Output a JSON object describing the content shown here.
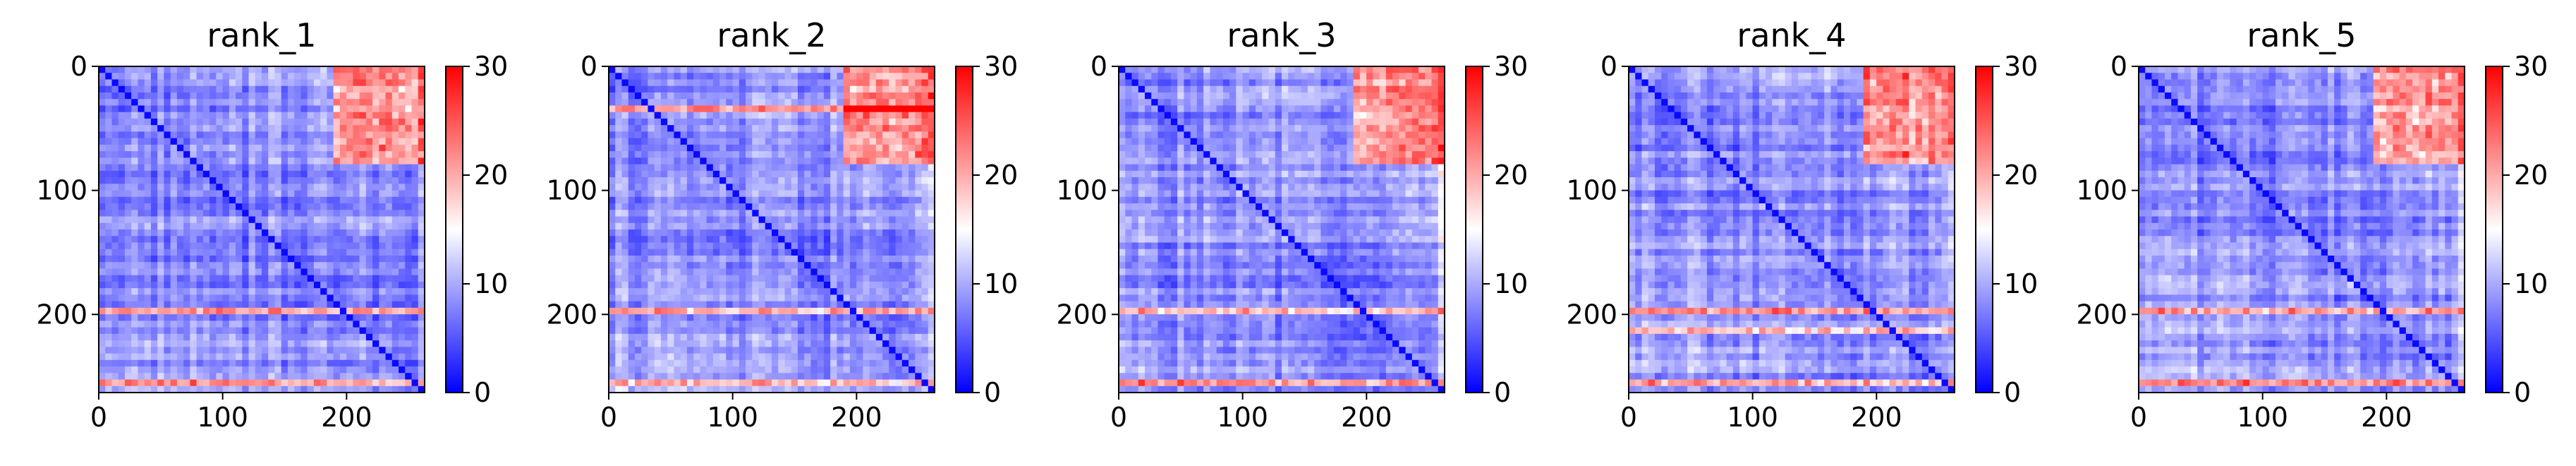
{
  "chart_data": [
    {
      "type": "heatmap",
      "title": "rank_1",
      "xlabel": "",
      "ylabel": "",
      "x_ticks": [
        "0",
        "100",
        "200"
      ],
      "y_ticks": [
        "0",
        "100",
        "200"
      ],
      "matrix_size": 263,
      "colorbar": {
        "min": 0,
        "max": 30,
        "ticks": [
          "0",
          "10",
          "20",
          "30"
        ],
        "colormap": "bwr"
      },
      "summary": {
        "diagonal_value": 0,
        "typical_offdiag": 8,
        "high_rows": [
          195,
          255
        ],
        "high_region": "top-right (rows 0-75, cols 185-263)"
      }
    },
    {
      "type": "heatmap",
      "title": "rank_2",
      "xlabel": "",
      "ylabel": "",
      "x_ticks": [
        "0",
        "100",
        "200"
      ],
      "y_ticks": [
        "0",
        "100",
        "200"
      ],
      "matrix_size": 263,
      "colorbar": {
        "min": 0,
        "max": 30,
        "ticks": [
          "0",
          "10",
          "20",
          "30"
        ],
        "colormap": "bwr"
      },
      "summary": {
        "diagonal_value": 0,
        "typical_offdiag": 8,
        "high_rows": [
          35,
          195,
          255
        ],
        "high_region": "top-right (rows 0-75, cols 185-263)"
      }
    },
    {
      "type": "heatmap",
      "title": "rank_3",
      "xlabel": "",
      "ylabel": "",
      "x_ticks": [
        "0",
        "100",
        "200"
      ],
      "y_ticks": [
        "0",
        "100",
        "200"
      ],
      "matrix_size": 263,
      "colorbar": {
        "min": 0,
        "max": 30,
        "ticks": [
          "0",
          "10",
          "20",
          "30"
        ],
        "colormap": "bwr"
      },
      "summary": {
        "diagonal_value": 0,
        "typical_offdiag": 8,
        "high_rows": [
          195,
          255
        ],
        "high_region": "top-right (rows 0-75, cols 185-263)"
      }
    },
    {
      "type": "heatmap",
      "title": "rank_4",
      "xlabel": "",
      "ylabel": "",
      "x_ticks": [
        "0",
        "100",
        "200"
      ],
      "y_ticks": [
        "0",
        "100",
        "200"
      ],
      "matrix_size": 263,
      "colorbar": {
        "min": 0,
        "max": 30,
        "ticks": [
          "0",
          "10",
          "20",
          "30"
        ],
        "colormap": "bwr"
      },
      "summary": {
        "diagonal_value": 0,
        "typical_offdiag": 8,
        "high_rows": [
          195,
          215,
          255
        ],
        "high_region": "top-right (rows 0-75, cols 185-263)"
      }
    },
    {
      "type": "heatmap",
      "title": "rank_5",
      "xlabel": "",
      "ylabel": "",
      "x_ticks": [
        "0",
        "100",
        "200"
      ],
      "y_ticks": [
        "0",
        "100",
        "200"
      ],
      "matrix_size": 263,
      "colorbar": {
        "min": 0,
        "max": 30,
        "ticks": [
          "0",
          "10",
          "20",
          "30"
        ],
        "colormap": "bwr"
      },
      "summary": {
        "diagonal_value": 0,
        "typical_offdiag": 8,
        "high_rows": [
          195,
          255
        ],
        "high_region": "top-right (rows 0-75, cols 185-263)"
      }
    }
  ]
}
